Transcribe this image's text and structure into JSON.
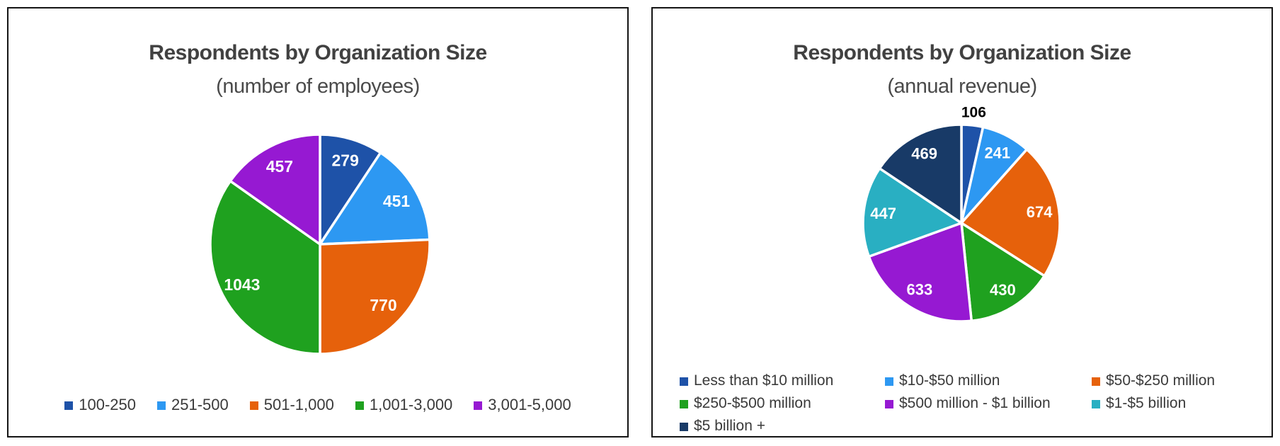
{
  "chart_data": [
    {
      "type": "pie",
      "title": "Respondents by Organization Size",
      "subtitle": "(number of employees)",
      "categories": [
        "100-250",
        "251-500",
        "501-1,000",
        "1,001-3,000",
        "3,001-5,000"
      ],
      "values": [
        279,
        451,
        770,
        1043,
        457
      ],
      "colors": [
        "#1E52A8",
        "#2D98F2",
        "#E6610B",
        "#1FA11F",
        "#9619D2"
      ],
      "total": 3000,
      "start_angle_deg": 0,
      "direction": "clockwise",
      "data_label_color": "#FFFFFF",
      "outside_label_indices": [],
      "outside_label_color": "#000000",
      "legend_position": "bottom",
      "legend_layout": "single-row-centered",
      "slice_gap_color": "#FFFFFF"
    },
    {
      "type": "pie",
      "title": "Respondents by Organization Size",
      "subtitle": "(annual revenue)",
      "categories": [
        "Less than $10 million",
        "$10-$50 million",
        "$50-$250 million",
        "$250-$500 million",
        "$500 million - $1 billion",
        "$1-$5 billion",
        "$5 billion +"
      ],
      "values": [
        106,
        241,
        674,
        430,
        633,
        447,
        469
      ],
      "colors": [
        "#1E52A8",
        "#2D98F2",
        "#E6610B",
        "#1FA11F",
        "#9619D2",
        "#29AFC2",
        "#183A67"
      ],
      "total": 3000,
      "start_angle_deg": 0,
      "direction": "clockwise",
      "data_label_color": "#FFFFFF",
      "outside_label_indices": [
        0
      ],
      "outside_label_color": "#000000",
      "legend_position": "bottom",
      "legend_layout": "grid-3col",
      "slice_gap_color": "#FFFFFF"
    }
  ],
  "styles": {
    "title_color": "#414141",
    "legend_text_color": "#3A3A3A",
    "panel_border_color": "#141414",
    "panel_background": "#FFFFFF"
  }
}
